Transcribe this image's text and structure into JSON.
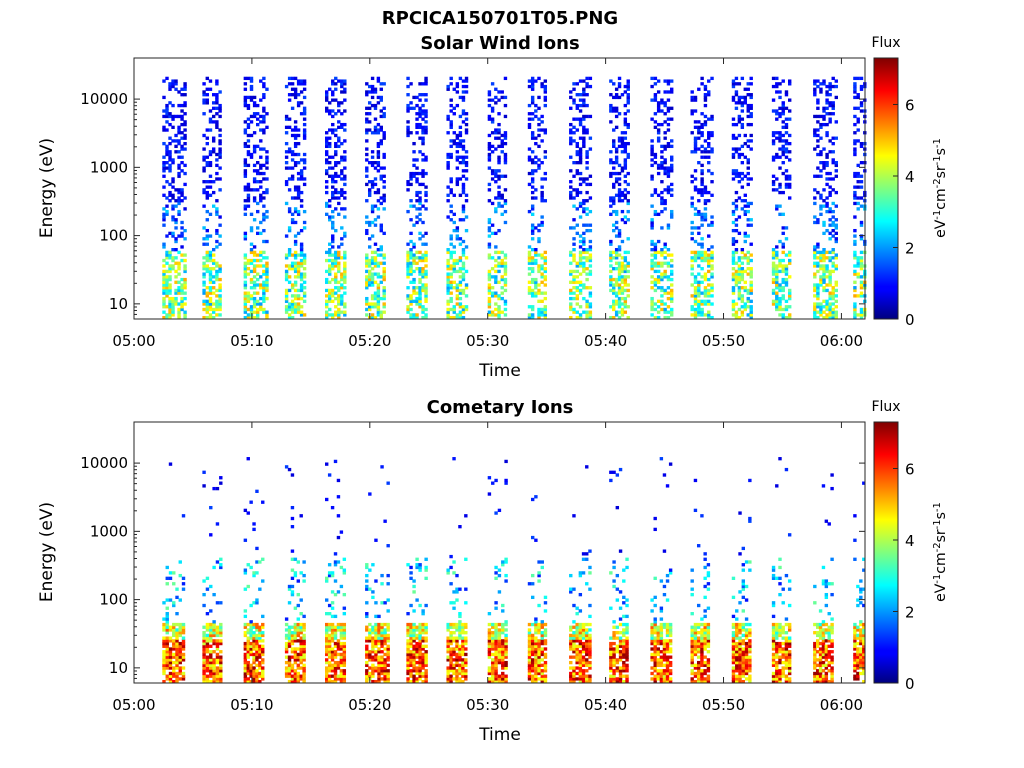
{
  "figure_title": "RPCICA150701T05.PNG",
  "chart_data": [
    {
      "type": "heatmap",
      "title": "Solar Wind Ions",
      "xlabel": "Time",
      "ylabel": "Energy (eV)",
      "x_ticks": [
        "05:00",
        "05:10",
        "05:20",
        "05:30",
        "05:40",
        "05:50",
        "06:00"
      ],
      "y_ticks": [
        "10",
        "100",
        "1000",
        "10000"
      ],
      "xlim": [
        "05:00",
        "06:02"
      ],
      "ylim": [
        6,
        40000
      ],
      "y_scale": "log",
      "colorbar": {
        "title": "Flux",
        "label": "eV-1cm-2sr-1s-1",
        "ticks": [
          "0",
          "2",
          "4",
          "6"
        ],
        "range": [
          0,
          7.3
        ],
        "colormap": "jet"
      },
      "sweep_start_minutes": [
        2.4,
        5.8,
        9.3,
        12.8,
        16.2,
        19.6,
        23.1,
        26.5,
        30.0,
        33.4,
        36.9,
        40.3,
        43.8,
        47.2,
        50.7,
        54.1,
        57.6,
        61.0
      ],
      "content": "energy-time spectrogram: sparse low-flux counts (blue) reaching ~20000 eV; higher flux (cyan-yellow) below ~50 eV"
    },
    {
      "type": "heatmap",
      "title": "Cometary Ions",
      "xlabel": "Time",
      "ylabel": "Energy (eV)",
      "x_ticks": [
        "05:00",
        "05:10",
        "05:20",
        "05:30",
        "05:40",
        "05:50",
        "06:00"
      ],
      "y_ticks": [
        "10",
        "100",
        "1000",
        "10000"
      ],
      "xlim": [
        "05:00",
        "06:02"
      ],
      "ylim": [
        6,
        40000
      ],
      "y_scale": "log",
      "colorbar": {
        "title": "Flux",
        "label": "eV-1cm-2sr-1s-1",
        "ticks": [
          "0",
          "2",
          "4",
          "6"
        ],
        "range": [
          0,
          7.3
        ],
        "colormap": "jet"
      },
      "sweep_start_minutes": [
        2.4,
        5.8,
        9.3,
        12.8,
        16.2,
        19.6,
        23.1,
        26.5,
        30.0,
        33.4,
        36.9,
        40.3,
        43.8,
        47.2,
        50.7,
        54.1,
        57.6,
        61.0
      ],
      "content": "energy-time spectrogram: high flux (orange-red, ~6-7) between ~6 and ~40 eV, sparse blue counts up to ~10000 eV"
    }
  ]
}
